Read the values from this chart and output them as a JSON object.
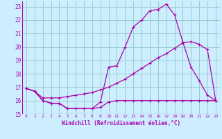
{
  "xlabel": "Windchill (Refroidissement éolien,°C)",
  "bg_color": "#cceeff",
  "grid_color": "#99cccc",
  "line_color": "#aa00aa",
  "xlim": [
    -0.5,
    23.5
  ],
  "ylim": [
    15,
    23.4
  ],
  "yticks": [
    15,
    16,
    17,
    18,
    19,
    20,
    21,
    22,
    23
  ],
  "xticks": [
    0,
    1,
    2,
    3,
    4,
    5,
    6,
    7,
    8,
    9,
    10,
    11,
    12,
    13,
    14,
    15,
    16,
    17,
    18,
    19,
    20,
    21,
    22,
    23
  ],
  "line1_x": [
    0,
    1,
    2,
    3,
    4,
    5,
    6,
    7,
    8,
    9,
    10,
    11,
    12,
    13,
    14,
    15,
    16,
    17,
    18,
    19,
    20,
    21,
    22,
    23
  ],
  "line1_y": [
    16.9,
    16.7,
    16.0,
    15.8,
    15.8,
    15.4,
    15.4,
    15.4,
    15.4,
    15.5,
    15.9,
    16.0,
    16.0,
    16.0,
    16.0,
    16.0,
    16.0,
    16.0,
    16.0,
    16.0,
    16.0,
    16.0,
    16.0,
    16.0
  ],
  "line2_x": [
    0,
    1,
    2,
    3,
    4,
    5,
    6,
    7,
    8,
    9,
    10,
    11,
    12,
    13,
    14,
    15,
    16,
    17,
    18,
    19,
    20,
    21,
    22,
    23
  ],
  "line2_y": [
    16.9,
    16.7,
    16.2,
    16.2,
    16.2,
    16.3,
    16.4,
    16.5,
    16.6,
    16.8,
    17.0,
    17.3,
    17.6,
    18.0,
    18.4,
    18.8,
    19.2,
    19.5,
    19.9,
    20.3,
    20.4,
    20.2,
    19.8,
    16.0
  ],
  "line3_x": [
    0,
    1,
    2,
    3,
    4,
    5,
    6,
    7,
    8,
    9,
    10,
    11,
    12,
    13,
    14,
    15,
    16,
    17,
    18,
    19,
    20,
    21,
    22,
    23
  ],
  "line3_y": [
    16.9,
    16.7,
    16.0,
    15.8,
    15.8,
    15.4,
    15.4,
    15.4,
    15.4,
    15.9,
    18.5,
    18.6,
    20.0,
    21.5,
    22.0,
    22.7,
    22.8,
    23.2,
    22.4,
    20.4,
    18.5,
    17.5,
    16.4,
    16.0
  ]
}
